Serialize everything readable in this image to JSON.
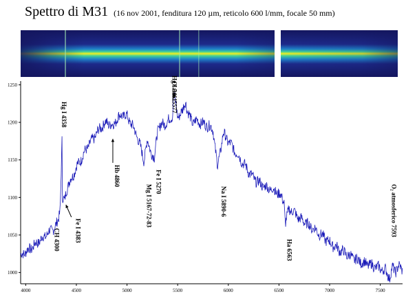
{
  "header": {
    "title": "Spettro di M31",
    "subtitle": "(16 nov 2001, fenditura 120 µm, reticolo 600 l/mm, focale 50 mm)"
  },
  "colors": {
    "spectrum_line": "#1a1ab8",
    "axis": "#000000",
    "strip_background": "#16186e",
    "strip_band_core": "#f3f020"
  },
  "chart_data": {
    "type": "line",
    "title": "Spettro di M31",
    "xlabel": "",
    "ylabel": "",
    "xlim": [
      3950,
      7720
    ],
    "ylim": [
      985,
      1255
    ],
    "xticks": [
      4000,
      4500,
      5000,
      5500,
      6000,
      6500,
      7000,
      7500
    ],
    "yticks": [
      1000,
      1050,
      1100,
      1150,
      1200,
      1250
    ],
    "grid": false,
    "legend": "none",
    "series": [
      {
        "x": [
          3950,
          4000,
          4050,
          4100,
          4150,
          4200,
          4250,
          4300,
          4320,
          4340,
          4358,
          4360,
          4383,
          4400,
          4450,
          4500,
          4550,
          4600,
          4650,
          4700,
          4750,
          4800,
          4860,
          4900,
          4950,
          5000,
          5050,
          5100,
          5167,
          5200,
          5270,
          5300,
          5350,
          5400,
          5450,
          5461,
          5500,
          5550,
          5577,
          5600,
          5650,
          5700,
          5750,
          5800,
          5850,
          5893,
          5950,
          6000,
          6050,
          6100,
          6150,
          6200,
          6250,
          6300,
          6350,
          6400,
          6450,
          6500,
          6550,
          6563,
          6600,
          6650,
          6700,
          6750,
          6800,
          6850,
          6900,
          6950,
          7000,
          7050,
          7100,
          7150,
          7200,
          7250,
          7300,
          7350,
          7400,
          7450,
          7500,
          7550,
          7593,
          7620,
          7650,
          7680,
          7720
        ],
        "y": [
          1022,
          1028,
          1032,
          1038,
          1044,
          1050,
          1056,
          1062,
          1070,
          1085,
          1175,
          1098,
          1095,
          1110,
          1125,
          1140,
          1152,
          1165,
          1175,
          1185,
          1195,
          1200,
          1195,
          1205,
          1210,
          1208,
          1196,
          1182,
          1150,
          1175,
          1150,
          1190,
          1198,
          1200,
          1210,
          1240,
          1208,
          1215,
          1230,
          1212,
          1200,
          1202,
          1198,
          1196,
          1190,
          1140,
          1185,
          1175,
          1165,
          1155,
          1145,
          1135,
          1125,
          1120,
          1115,
          1112,
          1110,
          1105,
          1095,
          1065,
          1085,
          1080,
          1072,
          1068,
          1062,
          1058,
          1052,
          1046,
          1040,
          1035,
          1030,
          1026,
          1022,
          1018,
          1015,
          1012,
          1010,
          1008,
          1005,
          1003,
          993,
          1006,
          1002,
          1008,
          1004
        ]
      }
    ],
    "annotations": [
      {
        "label": "Hg I 4358",
        "x": 4358
      },
      {
        "label": "CH 4300",
        "x": 4300
      },
      {
        "label": "Fe I 4383",
        "x": 4383
      },
      {
        "label": "Hb 4860",
        "x": 4860
      },
      {
        "label": "Mg I 5167-72-83",
        "x": 5175
      },
      {
        "label": "Fe I 5270",
        "x": 5270
      },
      {
        "label": "Hg I 5461",
        "x": 5461
      },
      {
        "label": "O atm. 5577",
        "x": 5577
      },
      {
        "label": "Na I 5890-6",
        "x": 5893
      },
      {
        "label": "Ha 6563",
        "x": 6563
      },
      {
        "label": "O₂ atmosferico 7593",
        "x": 7593
      }
    ]
  }
}
